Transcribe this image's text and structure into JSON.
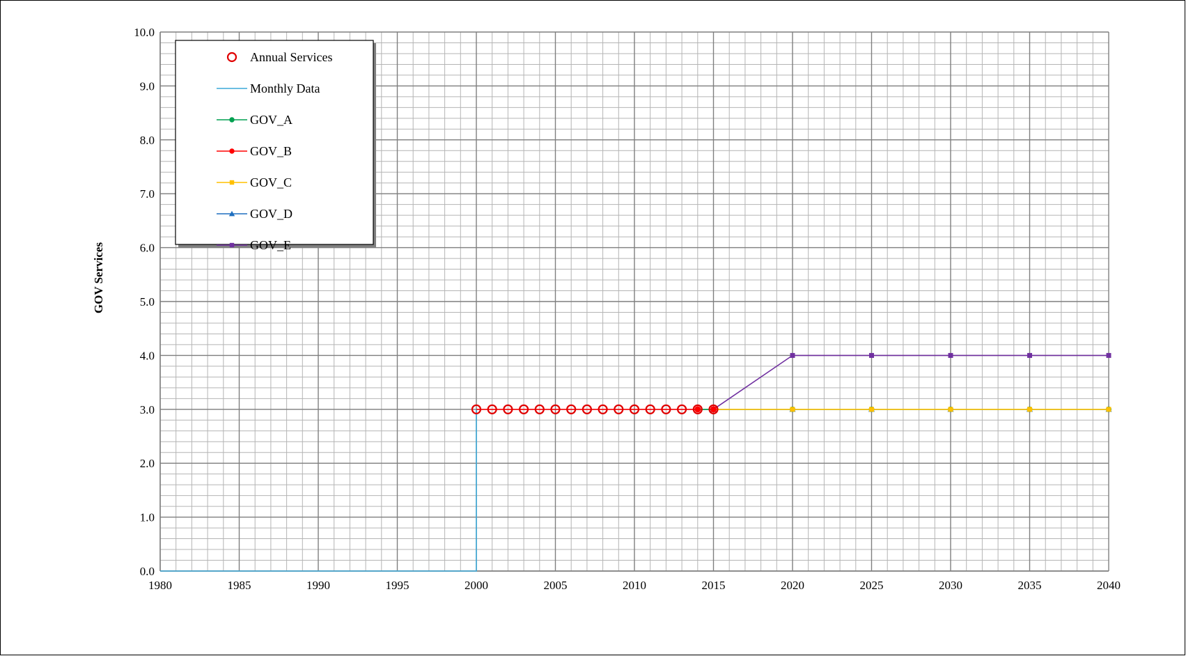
{
  "chart_data": {
    "type": "line",
    "title": "",
    "xlabel": "",
    "ylabel": "GOV Services",
    "xlim": [
      1980,
      2040
    ],
    "ylim": [
      0,
      10
    ],
    "x_ticks": [
      "1980",
      "1985",
      "1990",
      "1995",
      "2000",
      "2005",
      "2010",
      "2015",
      "2020",
      "2025",
      "2030",
      "2035",
      "2040"
    ],
    "y_ticks": [
      "0.0",
      "1.0",
      "2.0",
      "3.0",
      "4.0",
      "5.0",
      "6.0",
      "7.0",
      "8.0",
      "9.0",
      "10.0"
    ],
    "grid": true,
    "legend_position": "top-left",
    "series": [
      {
        "name": "Annual Services",
        "style": "markers-open-circle",
        "color": "#e00000",
        "points": [
          [
            2000,
            3
          ],
          [
            2001,
            3
          ],
          [
            2002,
            3
          ],
          [
            2003,
            3
          ],
          [
            2004,
            3
          ],
          [
            2005,
            3
          ],
          [
            2006,
            3
          ],
          [
            2007,
            3
          ],
          [
            2008,
            3
          ],
          [
            2009,
            3
          ],
          [
            2010,
            3
          ],
          [
            2011,
            3
          ],
          [
            2012,
            3
          ],
          [
            2013,
            3
          ],
          [
            2014,
            3
          ],
          [
            2015,
            3
          ]
        ]
      },
      {
        "name": "Monthly Data",
        "style": "step-line",
        "color": "#3ca9d9",
        "points": [
          [
            1980,
            0
          ],
          [
            2000,
            0
          ],
          [
            2000,
            3
          ],
          [
            2015,
            3
          ]
        ]
      },
      {
        "name": "GOV_A",
        "style": "line-circle",
        "color": "#00a050",
        "points": [
          [
            2014,
            3
          ],
          [
            2015,
            3
          ],
          [
            2020,
            3
          ],
          [
            2025,
            3
          ],
          [
            2030,
            3
          ],
          [
            2035,
            3
          ],
          [
            2040,
            3
          ]
        ]
      },
      {
        "name": "GOV_B",
        "style": "line-circle",
        "color": "#ff0000",
        "points": [
          [
            2000,
            3
          ],
          [
            2015,
            3
          ]
        ]
      },
      {
        "name": "GOV_C",
        "style": "line-square",
        "color": "#ffc000",
        "points": [
          [
            2015,
            3
          ],
          [
            2020,
            3
          ],
          [
            2025,
            3
          ],
          [
            2030,
            3
          ],
          [
            2035,
            3
          ],
          [
            2040,
            3
          ]
        ]
      },
      {
        "name": "GOV_D",
        "style": "line-triangle",
        "color": "#1f6fbf",
        "points": [
          [
            2015,
            3
          ],
          [
            2020,
            3
          ],
          [
            2025,
            3
          ],
          [
            2030,
            3
          ],
          [
            2035,
            3
          ],
          [
            2040,
            3
          ]
        ]
      },
      {
        "name": "GOV_E",
        "style": "line-square",
        "color": "#7030a0",
        "points": [
          [
            2015,
            3
          ],
          [
            2020,
            4
          ],
          [
            2025,
            4
          ],
          [
            2030,
            4
          ],
          [
            2035,
            4
          ],
          [
            2040,
            4
          ]
        ]
      }
    ]
  }
}
